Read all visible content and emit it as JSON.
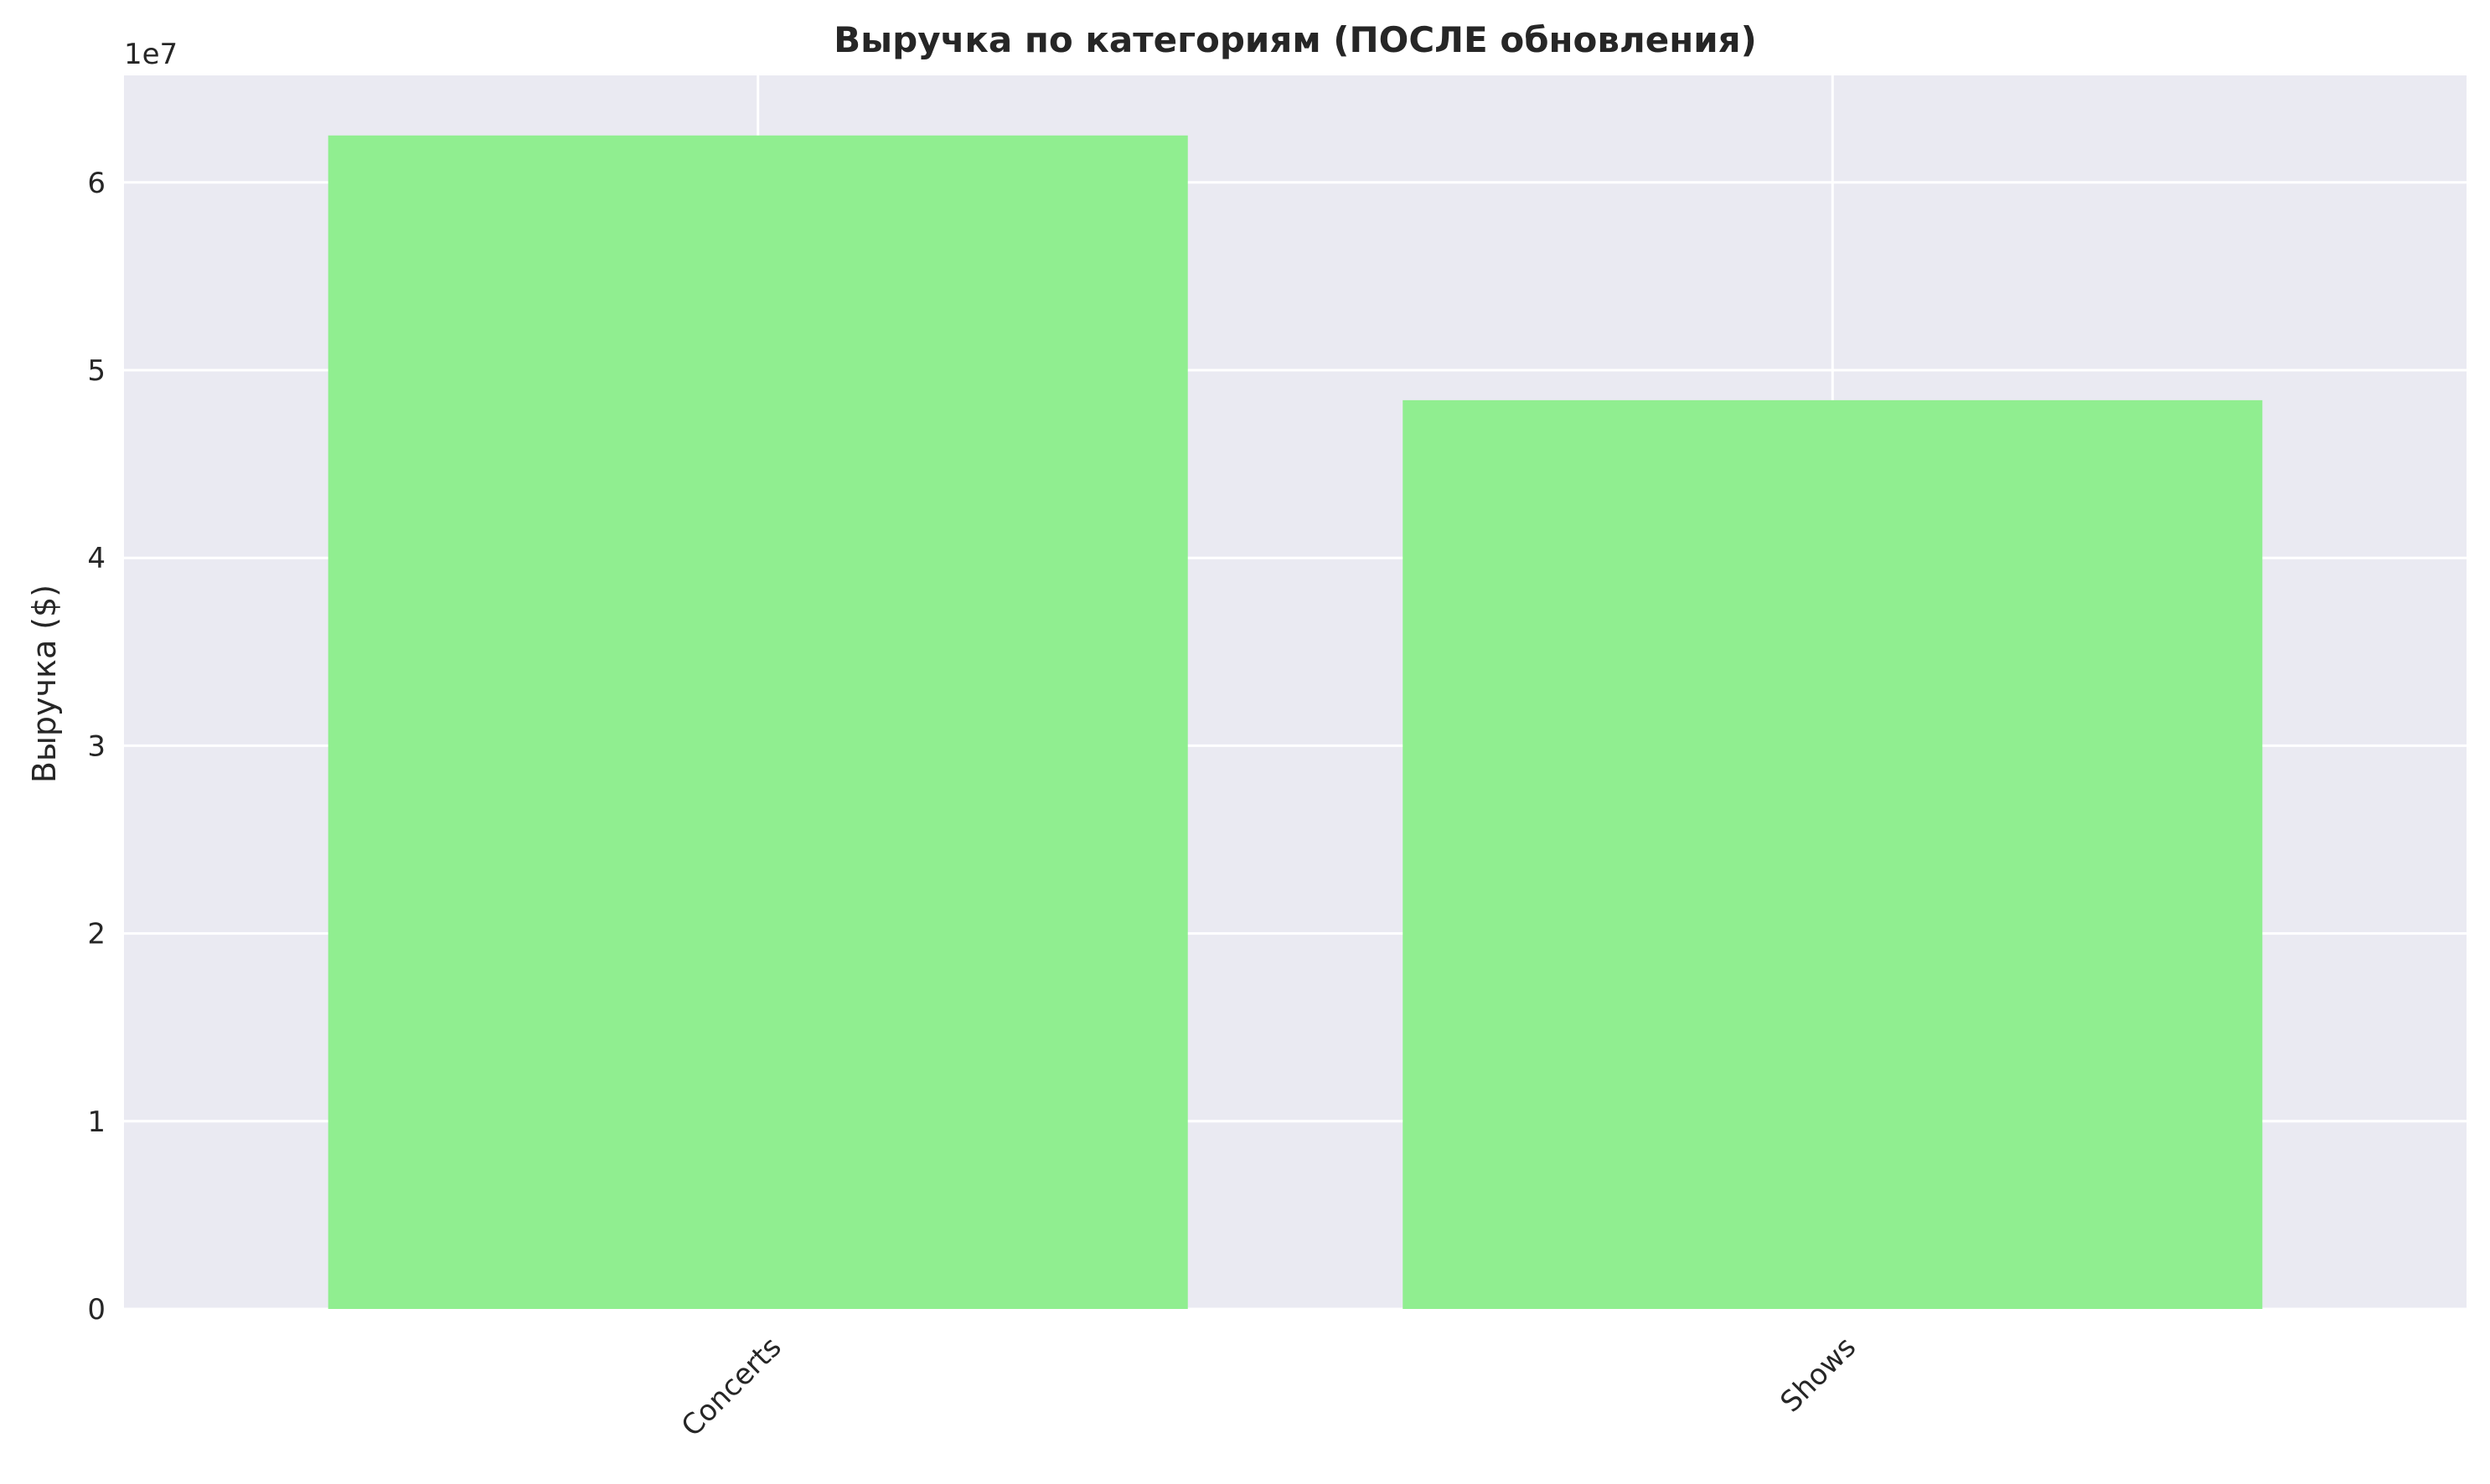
{
  "chart_data": {
    "type": "bar",
    "title": "Выручка по категориям (ПОСЛЕ обновления)",
    "xlabel": "",
    "ylabel": "Выручка ($)",
    "y_offset_label": "1e7",
    "categories": [
      "Concerts",
      "Shows"
    ],
    "values": [
      62500000,
      48400000
    ],
    "ylim": [
      0,
      65700000
    ],
    "y_ticks": [
      0,
      10000000,
      20000000,
      30000000,
      40000000,
      50000000,
      60000000
    ],
    "y_tick_labels": [
      "0",
      "1",
      "2",
      "3",
      "4",
      "5",
      "6"
    ],
    "x_tick_rotation": 45,
    "grid": true,
    "colors": {
      "bar": "#90ee90",
      "plot_background": "#eaeaf2",
      "grid": "#ffffff",
      "text": "#262626"
    }
  }
}
